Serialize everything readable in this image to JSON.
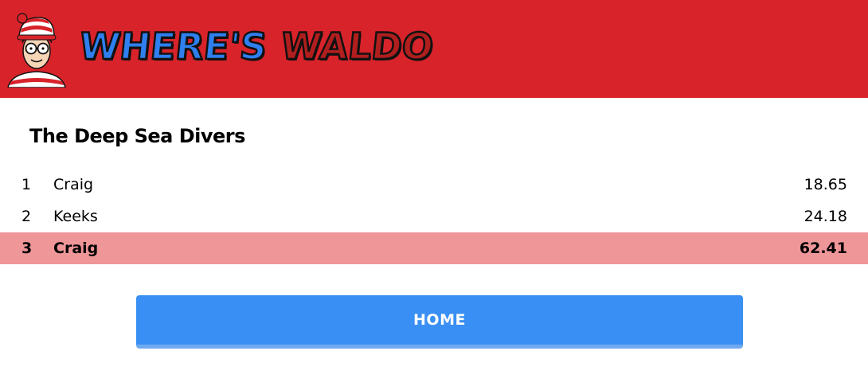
{
  "header": {
    "title_where": "WHERE'S",
    "title_waldo": "WALDO",
    "logo_icon": "waldo-face-icon"
  },
  "leaderboard": {
    "title": "The Deep Sea Divers",
    "rows": [
      {
        "rank": "1",
        "name": "Craig",
        "time": "18.65",
        "highlighted": false
      },
      {
        "rank": "2",
        "name": "Keeks",
        "time": "24.18",
        "highlighted": false
      },
      {
        "rank": "3",
        "name": "Craig",
        "time": "62.41",
        "highlighted": true
      }
    ]
  },
  "home_button": {
    "label": "HOME"
  },
  "colors": {
    "header_bg": "#d8232a",
    "title_where": "#2f7fef",
    "title_waldo": "#b01e1e",
    "highlight_row": "#ef9699",
    "button_bg": "#398ff3"
  }
}
